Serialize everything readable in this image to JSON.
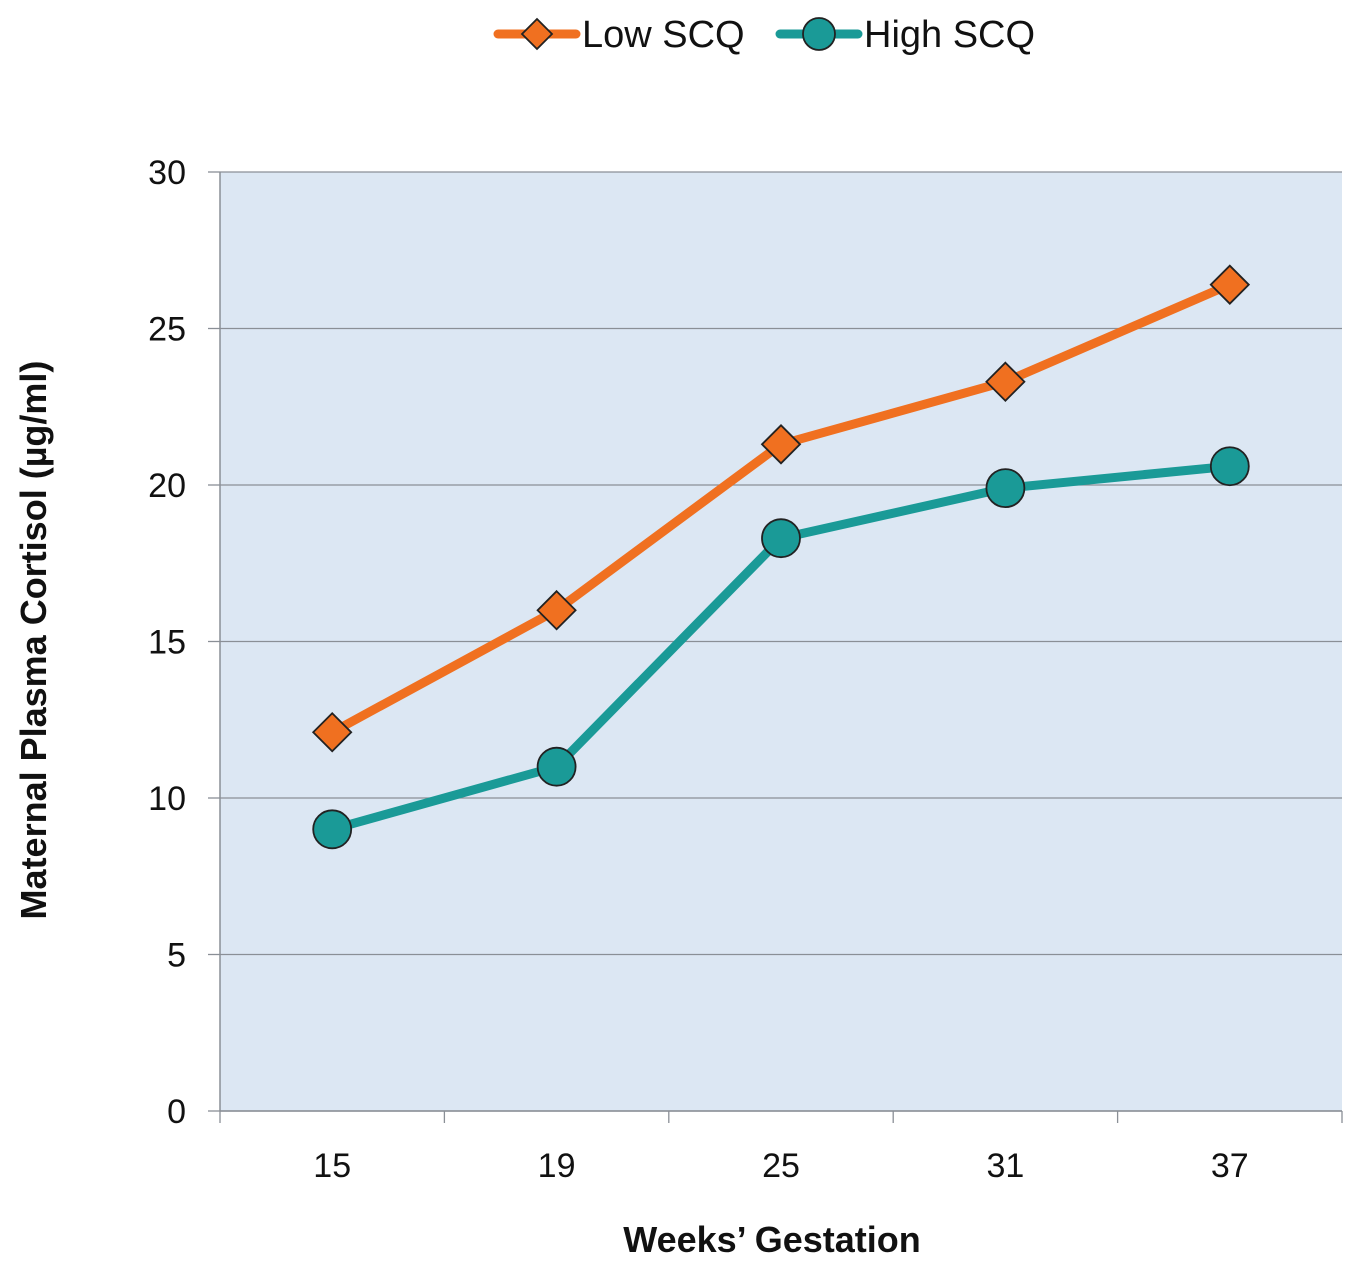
{
  "chart_data": {
    "type": "line",
    "categories": [
      "15",
      "19",
      "25",
      "31",
      "37"
    ],
    "xlabel": "Weeks’ Gestation",
    "ylabel": "Maternal Plasma Cortisol (µg/ml)",
    "ylim": [
      0,
      30
    ],
    "yticks": [
      0,
      5,
      10,
      15,
      20,
      25,
      30
    ],
    "grid": true,
    "legend": "top",
    "plot_background": "#dce7f3",
    "series": [
      {
        "name": "Low SCQ",
        "marker": "diamond",
        "color": "#f07020",
        "values": [
          12.1,
          16.0,
          21.3,
          23.3,
          26.4
        ]
      },
      {
        "name": "High SCQ",
        "marker": "circle",
        "color": "#1a9a97",
        "values": [
          9.0,
          11.0,
          18.3,
          19.9,
          20.6
        ]
      }
    ]
  }
}
